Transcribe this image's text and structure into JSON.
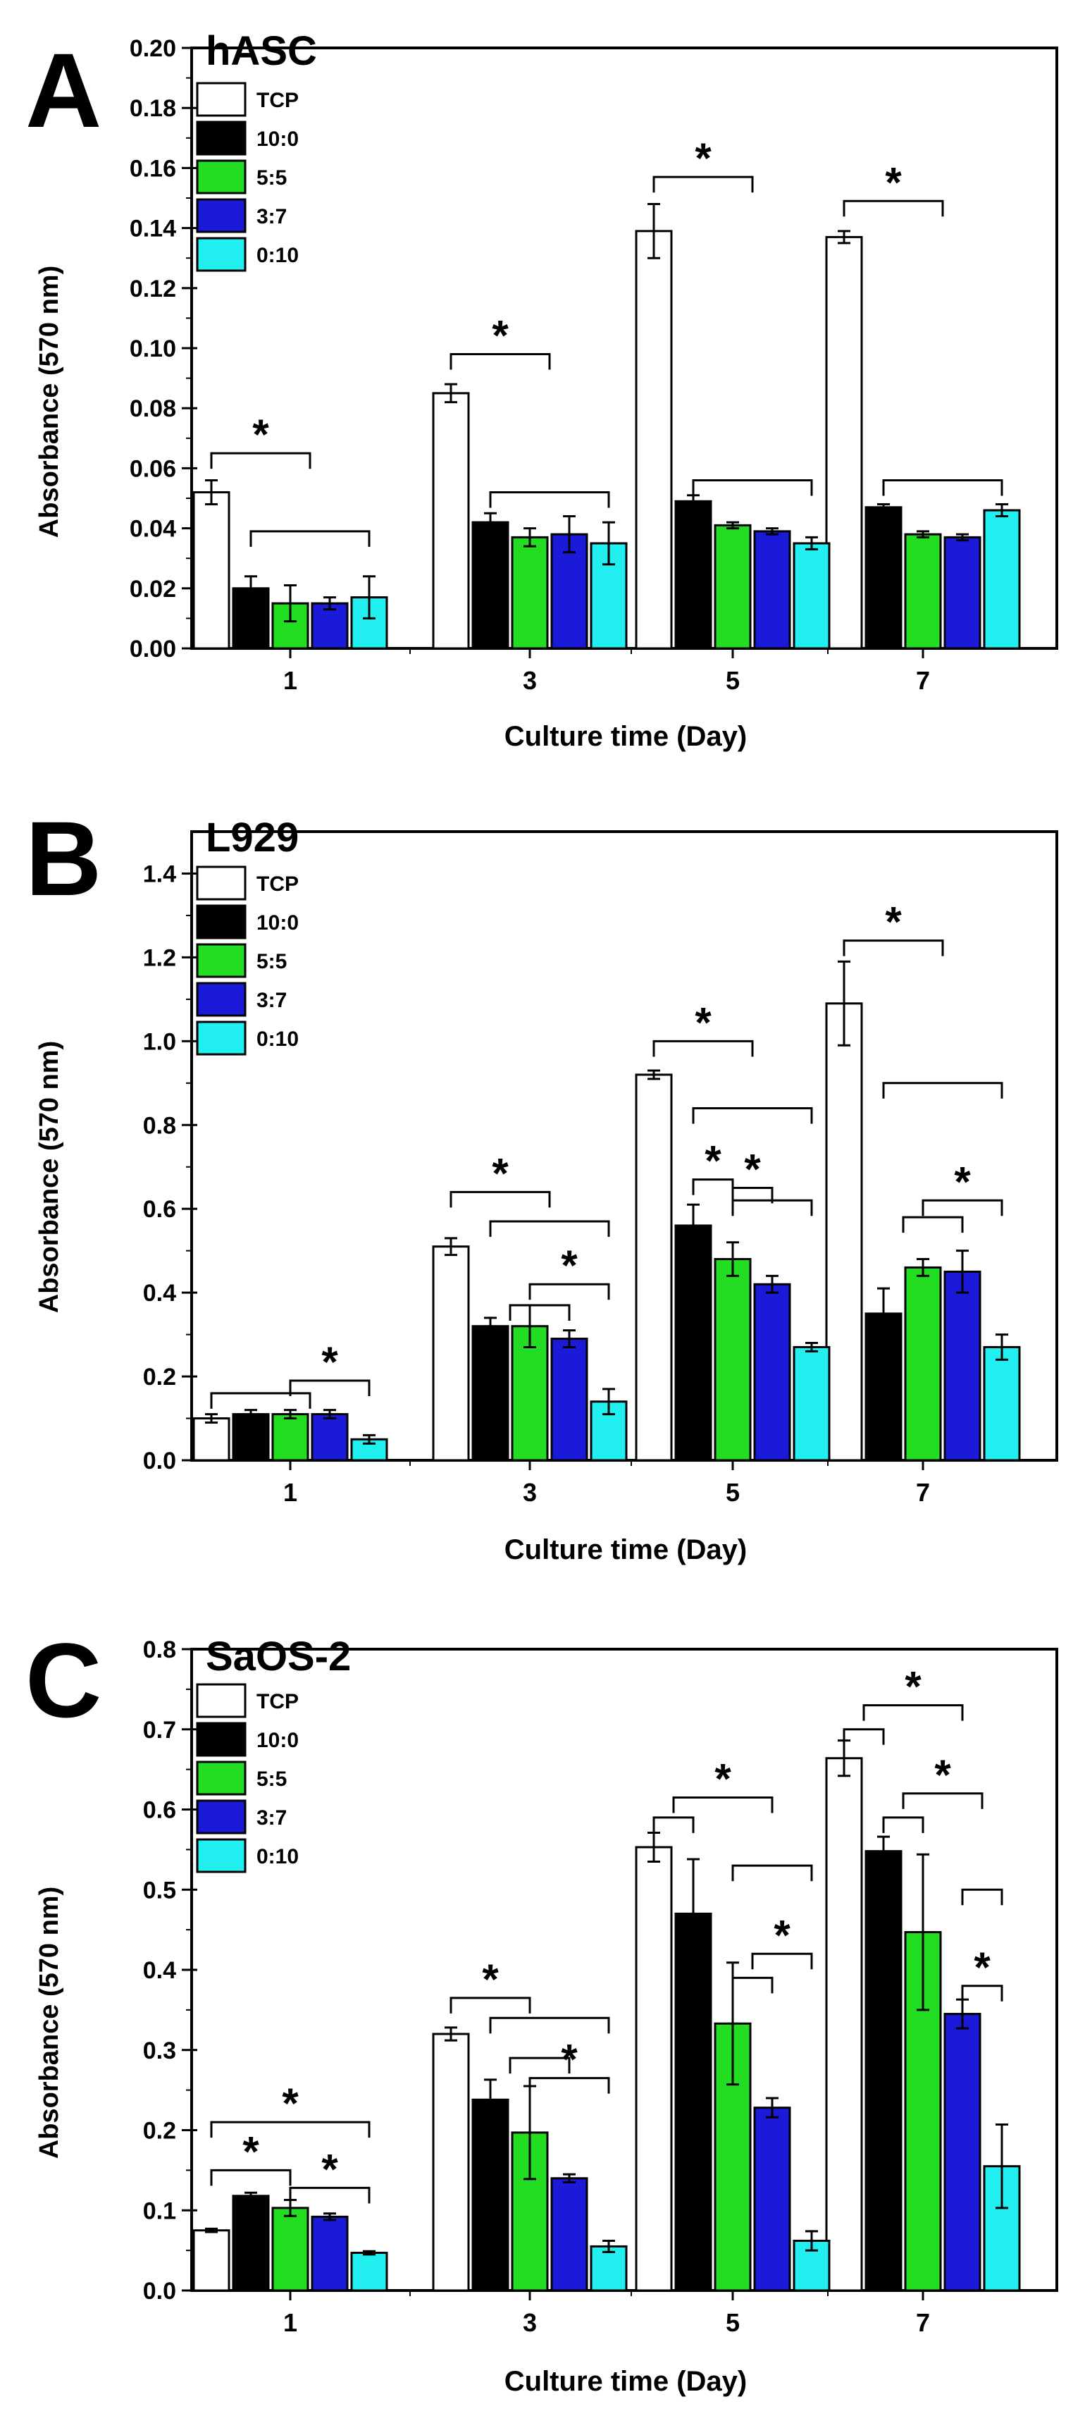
{
  "figure": {
    "colors": {
      "TCP": "#ffffff",
      "10:0": "#000000",
      "5:5": "#22dd22",
      "3:7": "#1a1ad8",
      "0:10": "#22f0f0"
    }
  },
  "chart_data": [
    {
      "type": "bar",
      "panel_letter": "A",
      "title": "hASC",
      "xlabel": "Culture time (Day)",
      "ylabel": "Absorbance (570 nm)",
      "categories": [
        "1",
        "3",
        "5",
        "7"
      ],
      "ylim": [
        0,
        0.2
      ],
      "yticks": [
        0.0,
        0.02,
        0.04,
        0.06,
        0.08,
        0.1,
        0.12,
        0.14,
        0.16,
        0.18,
        0.2
      ],
      "ytick_labels": [
        "0.00",
        "0.02",
        "0.04",
        "0.06",
        "0.08",
        "0.10",
        "0.12",
        "0.14",
        "0.16",
        "0.18",
        "0.20"
      ],
      "legend": "top-left",
      "series": [
        {
          "name": "TCP",
          "values": [
            0.052,
            0.085,
            0.139,
            0.137
          ],
          "errors": [
            0.004,
            0.003,
            0.009,
            0.002
          ]
        },
        {
          "name": "10:0",
          "values": [
            0.02,
            0.042,
            0.049,
            0.047
          ],
          "errors": [
            0.004,
            0.003,
            0.002,
            0.001
          ]
        },
        {
          "name": "5:5",
          "values": [
            0.015,
            0.037,
            0.041,
            0.038
          ],
          "errors": [
            0.006,
            0.003,
            0.001,
            0.001
          ]
        },
        {
          "name": "3:7",
          "values": [
            0.015,
            0.038,
            0.039,
            0.037
          ],
          "errors": [
            0.002,
            0.006,
            0.001,
            0.001
          ]
        },
        {
          "name": "0:10",
          "values": [
            0.017,
            0.035,
            0.035,
            0.046
          ],
          "errors": [
            0.007,
            0.007,
            0.002,
            0.002
          ]
        }
      ],
      "annotations": [
        {
          "label": "*",
          "day_index": 0,
          "from": [
            0,
            0
          ],
          "to": [
            1,
            4
          ],
          "bracket_y": 0.065
        },
        {
          "label": "",
          "day_index": 0,
          "from": [
            1,
            1
          ],
          "to": [
            4,
            4
          ],
          "bracket_y": 0.039
        },
        {
          "label": "*",
          "day_index": 1,
          "from": [
            0,
            0
          ],
          "to": [
            1,
            4
          ],
          "bracket_y": 0.098
        },
        {
          "label": "",
          "day_index": 1,
          "from": [
            1,
            1
          ],
          "to": [
            4,
            4
          ],
          "bracket_y": 0.052
        },
        {
          "label": "*",
          "day_index": 2,
          "from": [
            0,
            0
          ],
          "to": [
            1,
            4
          ],
          "bracket_y": 0.157
        },
        {
          "label": "",
          "day_index": 2,
          "from": [
            1,
            1
          ],
          "to": [
            4,
            4
          ],
          "bracket_y": 0.056
        },
        {
          "label": "*",
          "day_index": 3,
          "from": [
            0,
            0
          ],
          "to": [
            1,
            4
          ],
          "bracket_y": 0.149
        },
        {
          "label": "",
          "day_index": 3,
          "from": [
            1,
            1
          ],
          "to": [
            4,
            4
          ],
          "bracket_y": 0.056
        }
      ]
    },
    {
      "type": "bar",
      "panel_letter": "B",
      "title": "L929",
      "xlabel": "Culture time (Day)",
      "ylabel": "Absorbance (570 nm)",
      "categories": [
        "1",
        "3",
        "5",
        "7"
      ],
      "ylim": [
        0,
        1.5
      ],
      "yticks": [
        0.0,
        0.2,
        0.4,
        0.6,
        0.8,
        1.0,
        1.2,
        1.4
      ],
      "ytick_labels": [
        "0.0",
        "0.2",
        "0.4",
        "0.6",
        "0.8",
        "1.0",
        "1.2",
        "1.4"
      ],
      "legend": "top-left",
      "series": [
        {
          "name": "TCP",
          "values": [
            0.1,
            0.51,
            0.92,
            1.09
          ],
          "errors": [
            0.01,
            0.02,
            0.01,
            0.1
          ]
        },
        {
          "name": "10:0",
          "values": [
            0.11,
            0.32,
            0.56,
            0.35
          ],
          "errors": [
            0.01,
            0.02,
            0.05,
            0.06
          ]
        },
        {
          "name": "5:5",
          "values": [
            0.11,
            0.32,
            0.48,
            0.46
          ],
          "errors": [
            0.01,
            0.05,
            0.04,
            0.02
          ]
        },
        {
          "name": "3:7",
          "values": [
            0.11,
            0.29,
            0.42,
            0.45
          ],
          "errors": [
            0.01,
            0.02,
            0.02,
            0.05
          ]
        },
        {
          "name": "0:10",
          "values": [
            0.05,
            0.14,
            0.27,
            0.27
          ],
          "errors": [
            0.01,
            0.03,
            0.01,
            0.03
          ]
        }
      ],
      "annotations": [
        {
          "label": "",
          "day_index": 0,
          "from": [
            0,
            0
          ],
          "to": [
            1,
            4
          ],
          "bracket_y": 0.16
        },
        {
          "label": "*",
          "day_index": 0,
          "from": [
            1,
            3
          ],
          "to": [
            4,
            4
          ],
          "bracket_y": 0.19
        },
        {
          "label": "*",
          "day_index": 1,
          "from": [
            0,
            0
          ],
          "to": [
            1,
            4
          ],
          "bracket_y": 0.64
        },
        {
          "label": "",
          "day_index": 1,
          "from": [
            1,
            1
          ],
          "to": [
            4,
            4
          ],
          "bracket_y": 0.57
        },
        {
          "label": "",
          "day_index": 1,
          "from": [
            1,
            2
          ],
          "to": [
            3,
            3
          ],
          "bracket_y": 0.37
        },
        {
          "label": "*",
          "day_index": 1,
          "from": [
            1,
            3
          ],
          "to": [
            4,
            4
          ],
          "bracket_y": 0.42
        },
        {
          "label": "*",
          "day_index": 2,
          "from": [
            0,
            0
          ],
          "to": [
            1,
            4
          ],
          "bracket_y": 1.0
        },
        {
          "label": "",
          "day_index": 2,
          "from": [
            1,
            1
          ],
          "to": [
            4,
            4
          ],
          "bracket_y": 0.84
        },
        {
          "label": "*",
          "day_index": 2,
          "from": [
            1,
            1
          ],
          "to": [
            2,
            2
          ],
          "bracket_y": 0.67
        },
        {
          "label": "*",
          "day_index": 2,
          "from": [
            2,
            2
          ],
          "to": [
            3,
            3
          ],
          "bracket_y": 0.65
        },
        {
          "label": "",
          "day_index": 2,
          "from": [
            1,
            3
          ],
          "to": [
            4,
            4
          ],
          "bracket_y": 0.62
        },
        {
          "label": "*",
          "day_index": 3,
          "from": [
            0,
            0
          ],
          "to": [
            1,
            4
          ],
          "bracket_y": 1.24
        },
        {
          "label": "",
          "day_index": 3,
          "from": [
            1,
            1
          ],
          "to": [
            4,
            4
          ],
          "bracket_y": 0.9
        },
        {
          "label": "",
          "day_index": 3,
          "from": [
            1,
            2
          ],
          "to": [
            3,
            3
          ],
          "bracket_y": 0.58
        },
        {
          "label": "*",
          "day_index": 3,
          "from": [
            1,
            3
          ],
          "to": [
            4,
            4
          ],
          "bracket_y": 0.62
        }
      ]
    },
    {
      "type": "bar",
      "panel_letter": "C",
      "title": "SaOS-2",
      "xlabel": "Culture time (Day)",
      "ylabel": "Absorbance (570 nm)",
      "categories": [
        "1",
        "3",
        "5",
        "7"
      ],
      "ylim": [
        0,
        0.8
      ],
      "yticks": [
        0.0,
        0.1,
        0.2,
        0.3,
        0.4,
        0.5,
        0.6,
        0.7,
        0.8
      ],
      "ytick_labels": [
        "0.0",
        "0.1",
        "0.2",
        "0.3",
        "0.4",
        "0.5",
        "0.6",
        "0.7",
        "0.8"
      ],
      "legend": "top-left",
      "series": [
        {
          "name": "TCP",
          "values": [
            0.075,
            0.32,
            0.553,
            0.664
          ],
          "errors": [
            0.002,
            0.008,
            0.018,
            0.022
          ]
        },
        {
          "name": "10:0",
          "values": [
            0.118,
            0.238,
            0.47,
            0.548
          ],
          "errors": [
            0.004,
            0.025,
            0.068,
            0.018
          ]
        },
        {
          "name": "5:5",
          "values": [
            0.103,
            0.197,
            0.333,
            0.447
          ],
          "errors": [
            0.01,
            0.058,
            0.076,
            0.097
          ]
        },
        {
          "name": "3:7",
          "values": [
            0.092,
            0.14,
            0.228,
            0.345
          ],
          "errors": [
            0.004,
            0.005,
            0.012,
            0.018
          ]
        },
        {
          "name": "0:10",
          "values": [
            0.047,
            0.055,
            0.062,
            0.155
          ],
          "errors": [
            0.002,
            0.007,
            0.012,
            0.052
          ]
        }
      ],
      "annotations": [
        {
          "label": "*",
          "day_index": 0,
          "from": [
            0,
            0
          ],
          "to": [
            4,
            4
          ],
          "bracket_y": 0.21
        },
        {
          "label": "*",
          "day_index": 0,
          "from": [
            0,
            0
          ],
          "to": [
            1,
            3
          ],
          "bracket_y": 0.15
        },
        {
          "label": "*",
          "day_index": 0,
          "from": [
            1,
            3
          ],
          "to": [
            4,
            4
          ],
          "bracket_y": 0.128
        },
        {
          "label": "*",
          "day_index": 1,
          "from": [
            0,
            0
          ],
          "to": [
            1,
            3
          ],
          "bracket_y": 0.365
        },
        {
          "label": "",
          "day_index": 1,
          "from": [
            1,
            1
          ],
          "to": [
            4,
            4
          ],
          "bracket_y": 0.34
        },
        {
          "label": "",
          "day_index": 1,
          "from": [
            1,
            2
          ],
          "to": [
            3,
            3
          ],
          "bracket_y": 0.29
        },
        {
          "label": "*",
          "day_index": 1,
          "from": [
            1,
            3
          ],
          "to": [
            4,
            4
          ],
          "bracket_y": 0.265
        },
        {
          "label": "",
          "day_index": 2,
          "from": [
            0,
            0
          ],
          "to": [
            1,
            1
          ],
          "bracket_y": 0.59
        },
        {
          "label": "*",
          "day_index": 2,
          "from": [
            0,
            1
          ],
          "to": [
            2,
            4
          ],
          "bracket_y": 0.615
        },
        {
          "label": "",
          "day_index": 2,
          "from": [
            2,
            2
          ],
          "to": [
            4,
            4
          ],
          "bracket_y": 0.53
        },
        {
          "label": "",
          "day_index": 2,
          "from": [
            2,
            2
          ],
          "to": [
            3,
            3
          ],
          "bracket_y": 0.39
        },
        {
          "label": "*",
          "day_index": 2,
          "from": [
            2,
            3
          ],
          "to": [
            4,
            4
          ],
          "bracket_y": 0.42
        },
        {
          "label": "",
          "day_index": 3,
          "from": [
            0,
            0
          ],
          "to": [
            1,
            1
          ],
          "bracket_y": 0.7
        },
        {
          "label": "*",
          "day_index": 3,
          "from": [
            0,
            1
          ],
          "to": [
            2,
            4
          ],
          "bracket_y": 0.73
        },
        {
          "label": "",
          "day_index": 3,
          "from": [
            1,
            1
          ],
          "to": [
            2,
            2
          ],
          "bracket_y": 0.59
        },
        {
          "label": "*",
          "day_index": 3,
          "from": [
            1,
            2
          ],
          "to": [
            3,
            4
          ],
          "bracket_y": 0.62
        },
        {
          "label": "",
          "day_index": 3,
          "from": [
            3,
            3
          ],
          "to": [
            4,
            4
          ],
          "bracket_y": 0.5
        },
        {
          "label": "*",
          "day_index": 3,
          "from": [
            3,
            3
          ],
          "to": [
            4,
            4
          ],
          "bracket_y": 0.38
        }
      ]
    }
  ]
}
